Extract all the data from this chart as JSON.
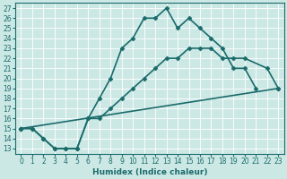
{
  "xlabel": "Humidex (Indice chaleur)",
  "bg_color": "#cce8e5",
  "line_color": "#1a6b6b",
  "grid_color": "#ffffff",
  "xlim": [
    -0.5,
    23.5
  ],
  "ylim": [
    12.5,
    27.5
  ],
  "xticks": [
    0,
    1,
    2,
    3,
    4,
    5,
    6,
    7,
    8,
    9,
    10,
    11,
    12,
    13,
    14,
    15,
    16,
    17,
    18,
    19,
    20,
    21,
    22,
    23
  ],
  "yticks": [
    13,
    14,
    15,
    16,
    17,
    18,
    19,
    20,
    21,
    22,
    23,
    24,
    25,
    26,
    27
  ],
  "line1_x": [
    0,
    1,
    2,
    3,
    4,
    5,
    6,
    7,
    8,
    9,
    10,
    11,
    12,
    13,
    14,
    15,
    16,
    17,
    18,
    19,
    20,
    21
  ],
  "line1_y": [
    15,
    15,
    14,
    13,
    13,
    13,
    16,
    18,
    20,
    23,
    24,
    26,
    26,
    27,
    25,
    26,
    25,
    24,
    23,
    21,
    21,
    19
  ],
  "line2_x": [
    0,
    1,
    2,
    3,
    4,
    5,
    6,
    7,
    8,
    9,
    10,
    11,
    12,
    13,
    14,
    15,
    16,
    17,
    18,
    19,
    20,
    22,
    23
  ],
  "line2_y": [
    15,
    15,
    14,
    13,
    13,
    13,
    16,
    16,
    17,
    18,
    19,
    20,
    21,
    22,
    22,
    23,
    23,
    23,
    22,
    22,
    22,
    21,
    19
  ],
  "line3_x": [
    0,
    23
  ],
  "line3_y": [
    15,
    19
  ],
  "markersize": 2.5,
  "linewidth": 1.2,
  "tick_fontsize": 5.5,
  "xlabel_fontsize": 6.5
}
